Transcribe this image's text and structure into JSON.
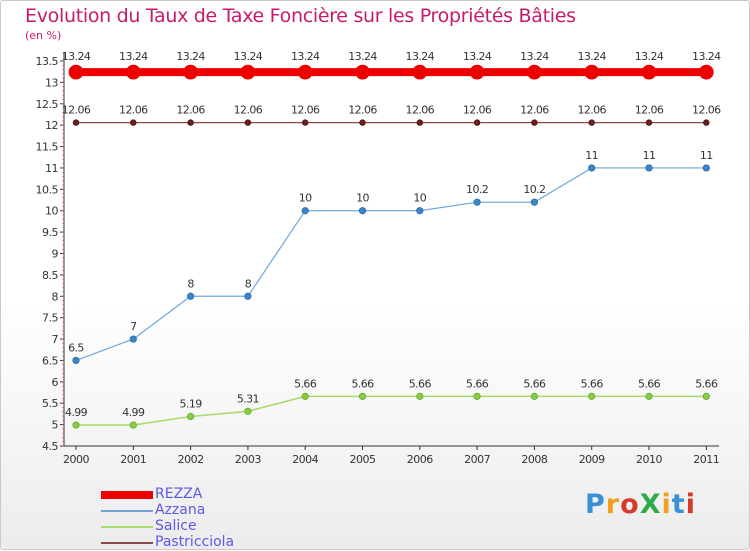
{
  "chart_data": {
    "type": "line",
    "title": "Evolution du Taux de Taxe Foncière sur les Propriétés Bâties",
    "ylabel": "(en %)",
    "xlabel": "",
    "categories": [
      "2000",
      "2001",
      "2002",
      "2003",
      "2004",
      "2005",
      "2006",
      "2007",
      "2008",
      "2009",
      "2010",
      "2011"
    ],
    "yticks": [
      "4.5",
      "5",
      "5.5",
      "6",
      "6.5",
      "7",
      "7.5",
      "8",
      "8.5",
      "9",
      "9.5",
      "10",
      "10.5",
      "11",
      "11.5",
      "12",
      "12.5",
      "13",
      "13.5"
    ],
    "ylim": [
      4.5,
      13.5
    ],
    "grid": false,
    "legend_position": "bottom-left",
    "series": [
      {
        "name": "REZZA",
        "color": "#ee0000",
        "values": [
          13.24,
          13.24,
          13.24,
          13.24,
          13.24,
          13.24,
          13.24,
          13.24,
          13.24,
          13.24,
          13.24,
          13.24
        ],
        "labels": [
          "13.24",
          "13.24",
          "13.24",
          "13.24",
          "13.24",
          "13.24",
          "13.24",
          "13.24",
          "13.24",
          "13.24",
          "13.24",
          "13.24"
        ]
      },
      {
        "name": "Azzana",
        "color": "#6ea6d8",
        "values": [
          6.5,
          7,
          8,
          8,
          10,
          10,
          10,
          10.2,
          10.2,
          11,
          11,
          11
        ],
        "labels": [
          "6.5",
          "7",
          "8",
          "8",
          "10",
          "10",
          "10",
          "10.2",
          "10.2",
          "11",
          "11",
          "11"
        ]
      },
      {
        "name": "Salice",
        "color": "#a9dc6e",
        "values": [
          4.99,
          4.99,
          5.19,
          5.31,
          5.66,
          5.66,
          5.66,
          5.66,
          5.66,
          5.66,
          5.66,
          5.66
        ],
        "labels": [
          "4.99",
          "4.99",
          "5.19",
          "5.31",
          "5.66",
          "5.66",
          "5.66",
          "5.66",
          "5.66",
          "5.66",
          "5.66",
          "5.66"
        ]
      },
      {
        "name": "Pastricciola",
        "color": "#8b4a4a",
        "values": [
          12.06,
          12.06,
          12.06,
          12.06,
          12.06,
          12.06,
          12.06,
          12.06,
          12.06,
          12.06,
          12.06,
          12.06
        ],
        "labels": [
          "12.06",
          "12.06",
          "12.06",
          "12.06",
          "12.06",
          "12.06",
          "12.06",
          "12.06",
          "12.06",
          "12.06",
          "12.06",
          "12.06"
        ]
      }
    ]
  },
  "logo": {
    "text": "ProXiti",
    "colors": [
      "#3a8fd6",
      "#f0a020",
      "#d83a2a",
      "#2eaa4a",
      "#f0a020",
      "#3a8fd6",
      "#d83a2a"
    ]
  }
}
